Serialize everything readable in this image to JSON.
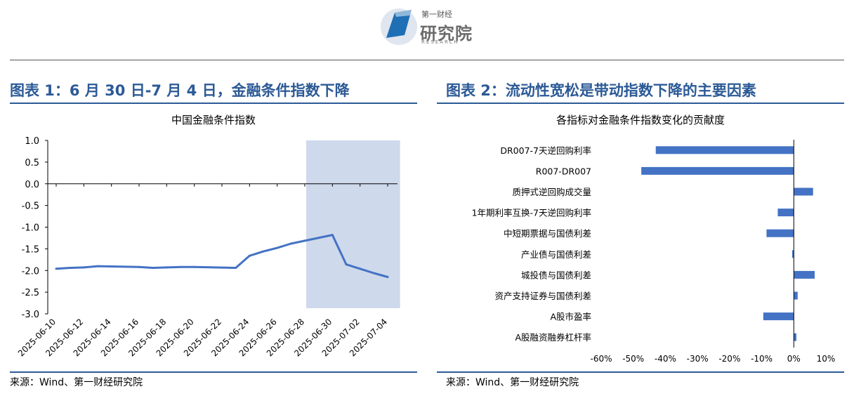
{
  "logo": {
    "small": "第一财经",
    "big": "研究院",
    "tiny": "RESEARCH"
  },
  "left": {
    "figure_title": "图表 1：6 月 30 日-7 月 4 日，金融条件指数下降",
    "source": "来源：Wind、第一财经研究院"
  },
  "right": {
    "figure_title": "图表 2：流动性宽松是带动指数下降的主要因素",
    "source": "来源：Wind、第一财经研究院"
  },
  "chart_data": [
    {
      "type": "line",
      "title": "中国金融条件指数",
      "x": [
        "2025-06-10",
        "2025-06-11",
        "2025-06-12",
        "2025-06-13",
        "2025-06-16",
        "2025-06-17",
        "2025-06-18",
        "2025-06-19",
        "2025-06-20",
        "2025-06-23",
        "2025-06-24",
        "2025-06-25",
        "2025-06-26",
        "2025-06-27",
        "2025-06-30",
        "2025-07-01",
        "2025-07-02",
        "2025-07-03",
        "2025-07-04"
      ],
      "values": [
        -1.96,
        -1.94,
        -1.93,
        -1.9,
        -1.92,
        -1.94,
        -1.93,
        -1.92,
        -1.92,
        -1.94,
        -1.66,
        -1.56,
        -1.48,
        -1.38,
        -1.18,
        -1.86,
        -1.96,
        -2.06,
        -2.15
      ],
      "tick_labels": [
        "2025-06-10",
        "2025-06-12",
        "2025-06-14",
        "2025-06-16",
        "2025-06-18",
        "2025-06-20",
        "2025-06-22",
        "2025-06-24",
        "2025-06-26",
        "2025-06-28",
        "2025-06-30",
        "2025-07-02",
        "2025-07-04"
      ],
      "y_ticks": [
        "1.0",
        "0.5",
        "0.0",
        "-0.5",
        "-1.0",
        "-1.5",
        "-2.0",
        "-2.5",
        "-3.0"
      ],
      "ylim": [
        -3.0,
        1.0
      ],
      "shaded_range": [
        "2025-06-28",
        "2025-07-05"
      ],
      "line_color": "#4472c4",
      "shade_color": "#cfd9ec"
    },
    {
      "type": "bar",
      "orientation": "horizontal",
      "title": "各指标对金融条件指数变化的贡献度",
      "categories": [
        "DR007-7天逆回购利率",
        "R007-DR007",
        "质押式逆回购成交量",
        "1年期利率互换-7天逆回购利率",
        "中短期票据与国债利差",
        "产业债与国债利差",
        "城投债与国债利差",
        "资产支持证券与国债利差",
        "A股市盈率",
        "A股融资融券杠杆率"
      ],
      "values": [
        -43,
        -47.5,
        6,
        -5,
        -8.5,
        -0.5,
        6.5,
        1.2,
        -9.5,
        0.8
      ],
      "x_ticks": [
        "-60%",
        "-50%",
        "-40%",
        "-30%",
        "-20%",
        "-10%",
        "0%",
        "10%"
      ],
      "xlim": [
        -60,
        10
      ],
      "bar_color": "#4472c4"
    }
  ]
}
